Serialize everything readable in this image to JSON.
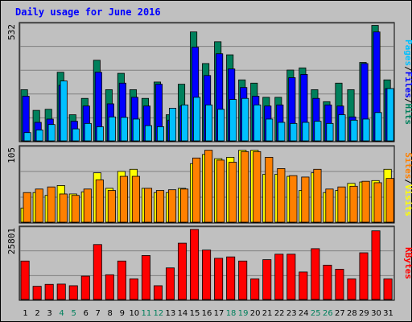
{
  "title": "Daily usage for June 2016",
  "colors": {
    "hits": "#00805c",
    "files": "#0000ff",
    "pages": "#00c0ff",
    "visits": "#ffff00",
    "sites": "#ff8000",
    "kbytes": "#ff0000",
    "weekend_day": "#00805c",
    "weekday": "#000000",
    "panel_bg": "#c0c0c0"
  },
  "chart_data": [
    {
      "type": "bar",
      "panel": "hits-files-pages",
      "ymax_label": "532",
      "ylim": [
        0,
        532
      ],
      "legend": [
        "Pages",
        "Files",
        "Hits"
      ],
      "series": [
        {
          "name": "Hits",
          "values": [
            235,
            140,
            145,
            315,
            120,
            195,
            370,
            235,
            310,
            235,
            195,
            270,
            120,
            260,
            500,
            355,
            455,
            395,
            280,
            265,
            200,
            200,
            325,
            335,
            235,
            180,
            265,
            235,
            360,
            530,
            280
          ]
        },
        {
          "name": "Files",
          "values": [
            205,
            85,
            100,
            255,
            90,
            160,
            315,
            170,
            265,
            200,
            160,
            260,
            95,
            160,
            430,
            300,
            400,
            330,
            245,
            205,
            160,
            165,
            290,
            305,
            195,
            165,
            160,
            110,
            355,
            500,
            240
          ]
        },
        {
          "name": "Pages",
          "values": [
            38,
            50,
            75,
            275,
            55,
            80,
            65,
            110,
            108,
            100,
            70,
            65,
            150,
            165,
            200,
            165,
            145,
            190,
            195,
            165,
            100,
            85,
            80,
            85,
            90,
            80,
            120,
            95,
            100,
            130,
            240
          ]
        }
      ]
    },
    {
      "type": "bar",
      "panel": "visits-sites",
      "ymax_label": "105",
      "ylim": [
        0,
        105
      ],
      "legend": [
        "Sites",
        "Visits"
      ],
      "series": [
        {
          "name": "Visits",
          "values": [
            20,
            42,
            38,
            52,
            40,
            43,
            70,
            48,
            72,
            75,
            48,
            42,
            42,
            48,
            83,
            96,
            90,
            92,
            102,
            102,
            68,
            68,
            65,
            45,
            70,
            42,
            45,
            55,
            57,
            59,
            75
          ]
        },
        {
          "name": "Sites",
          "values": [
            42,
            47,
            50,
            40,
            38,
            47,
            60,
            45,
            65,
            65,
            48,
            45,
            46,
            47,
            91,
            102,
            88,
            85,
            100,
            100,
            92,
            76,
            66,
            64,
            75,
            47,
            50,
            51,
            58,
            56,
            62
          ]
        }
      ]
    },
    {
      "type": "bar",
      "panel": "kbytes",
      "ymax_label": "25801",
      "ylim": [
        0,
        25801
      ],
      "legend": [
        "KBytes"
      ],
      "series": [
        {
          "name": "KBytes",
          "values": [
            14000,
            4800,
            5500,
            5600,
            5000,
            8500,
            20000,
            9000,
            14000,
            7500,
            16000,
            5000,
            11500,
            20500,
            25500,
            18000,
            15000,
            15500,
            14000,
            7500,
            14500,
            16500,
            16500,
            10000,
            18500,
            12500,
            11000,
            7500,
            17000,
            25000,
            7500
          ]
        }
      ]
    }
  ],
  "x_categories": [
    {
      "label": "1",
      "weekend": false
    },
    {
      "label": "2",
      "weekend": false
    },
    {
      "label": "3",
      "weekend": false
    },
    {
      "label": "4",
      "weekend": true
    },
    {
      "label": "5",
      "weekend": true
    },
    {
      "label": "6",
      "weekend": false
    },
    {
      "label": "7",
      "weekend": false
    },
    {
      "label": "8",
      "weekend": false
    },
    {
      "label": "9",
      "weekend": false
    },
    {
      "label": "10",
      "weekend": false
    },
    {
      "label": "11",
      "weekend": true
    },
    {
      "label": "12",
      "weekend": true
    },
    {
      "label": "13",
      "weekend": false
    },
    {
      "label": "14",
      "weekend": false
    },
    {
      "label": "15",
      "weekend": false
    },
    {
      "label": "16",
      "weekend": false
    },
    {
      "label": "17",
      "weekend": false
    },
    {
      "label": "18",
      "weekend": true
    },
    {
      "label": "19",
      "weekend": true
    },
    {
      "label": "20",
      "weekend": false
    },
    {
      "label": "21",
      "weekend": false
    },
    {
      "label": "22",
      "weekend": false
    },
    {
      "label": "23",
      "weekend": false
    },
    {
      "label": "24",
      "weekend": false
    },
    {
      "label": "25",
      "weekend": true
    },
    {
      "label": "26",
      "weekend": true
    },
    {
      "label": "27",
      "weekend": false
    },
    {
      "label": "28",
      "weekend": false
    },
    {
      "label": "29",
      "weekend": false
    },
    {
      "label": "30",
      "weekend": false
    },
    {
      "label": "31",
      "weekend": false
    }
  ]
}
